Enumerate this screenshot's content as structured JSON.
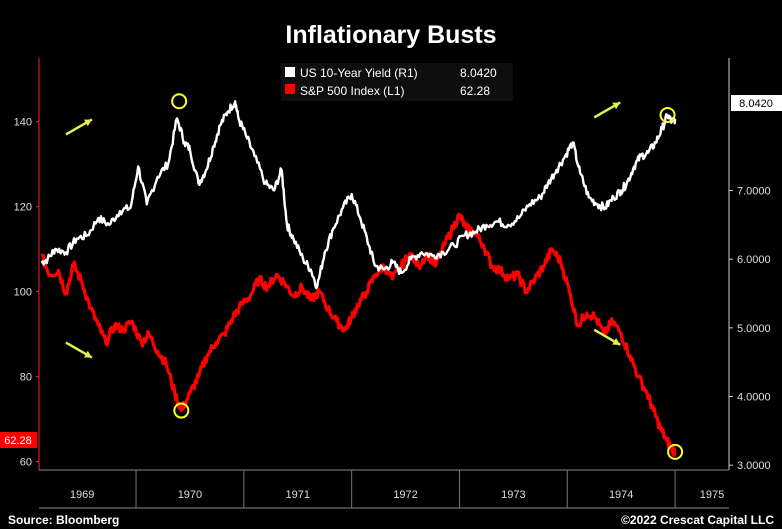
{
  "chart_data": {
    "type": "line",
    "title": "Inflationary Busts",
    "x_range": [
      1968.6,
      1975
    ],
    "x_ticks": [
      "1969",
      "1970",
      "1971",
      "1972",
      "1973",
      "1974",
      "1975"
    ],
    "left_axis": {
      "range": [
        58,
        155
      ],
      "ticks": [
        "140",
        "120",
        "100",
        "80",
        "60"
      ]
    },
    "right_axis": {
      "range": [
        2.93,
        8.93
      ],
      "ticks": [
        "7.0000",
        "6.0000",
        "5.0000",
        "4.0000",
        "3.0000"
      ]
    },
    "series": [
      {
        "name": "US 10-Year Yield (R1)",
        "axis": "right",
        "color": "#ffffff",
        "last_value": "8.0420",
        "points": [
          [
            1968.62,
            5.95
          ],
          [
            1968.68,
            6.0
          ],
          [
            1968.75,
            6.15
          ],
          [
            1968.85,
            6.1
          ],
          [
            1968.95,
            6.3
          ],
          [
            1969.05,
            6.35
          ],
          [
            1969.15,
            6.6
          ],
          [
            1969.25,
            6.5
          ],
          [
            1969.35,
            6.7
          ],
          [
            1969.45,
            6.75
          ],
          [
            1969.52,
            7.35
          ],
          [
            1969.6,
            6.8
          ],
          [
            1969.7,
            7.2
          ],
          [
            1969.8,
            7.4
          ],
          [
            1969.88,
            8.05
          ],
          [
            1969.95,
            7.7
          ],
          [
            1970.0,
            7.6
          ],
          [
            1970.08,
            7.1
          ],
          [
            1970.15,
            7.3
          ],
          [
            1970.22,
            7.65
          ],
          [
            1970.28,
            7.95
          ],
          [
            1970.35,
            8.15
          ],
          [
            1970.42,
            8.3
          ],
          [
            1970.45,
            8.05
          ],
          [
            1970.52,
            7.8
          ],
          [
            1970.6,
            7.5
          ],
          [
            1970.7,
            7.1
          ],
          [
            1970.78,
            7.0
          ],
          [
            1970.85,
            7.3
          ],
          [
            1970.9,
            6.5
          ],
          [
            1970.96,
            6.3
          ],
          [
            1971.05,
            6.0
          ],
          [
            1971.12,
            5.85
          ],
          [
            1971.18,
            5.6
          ],
          [
            1971.25,
            6.1
          ],
          [
            1971.33,
            6.45
          ],
          [
            1971.42,
            6.75
          ],
          [
            1971.5,
            6.95
          ],
          [
            1971.58,
            6.6
          ],
          [
            1971.66,
            6.2
          ],
          [
            1971.72,
            5.9
          ],
          [
            1971.8,
            5.85
          ],
          [
            1971.88,
            5.95
          ],
          [
            1971.96,
            5.8
          ],
          [
            1972.05,
            6.0
          ],
          [
            1972.15,
            6.1
          ],
          [
            1972.25,
            6.05
          ],
          [
            1972.35,
            6.1
          ],
          [
            1972.45,
            6.2
          ],
          [
            1972.55,
            6.35
          ],
          [
            1972.65,
            6.4
          ],
          [
            1972.75,
            6.5
          ],
          [
            1972.85,
            6.55
          ],
          [
            1972.95,
            6.5
          ],
          [
            1973.05,
            6.6
          ],
          [
            1973.15,
            6.8
          ],
          [
            1973.25,
            6.9
          ],
          [
            1973.32,
            7.1
          ],
          [
            1973.4,
            7.3
          ],
          [
            1973.48,
            7.5
          ],
          [
            1973.55,
            7.7
          ],
          [
            1973.62,
            7.25
          ],
          [
            1973.7,
            6.9
          ],
          [
            1973.78,
            6.8
          ],
          [
            1973.85,
            6.75
          ],
          [
            1973.93,
            6.9
          ],
          [
            1974.0,
            7.0
          ],
          [
            1974.05,
            7.1
          ],
          [
            1974.12,
            7.35
          ],
          [
            1974.18,
            7.5
          ],
          [
            1974.25,
            7.55
          ],
          [
            1974.32,
            7.7
          ],
          [
            1974.38,
            7.9
          ],
          [
            1974.43,
            8.1
          ],
          [
            1974.47,
            8.0
          ],
          [
            1974.5,
            8.04
          ]
        ]
      },
      {
        "name": "S&P 500 Index (L1)",
        "axis": "left",
        "color": "#ff0000",
        "last_value": "62.28",
        "points": [
          [
            1968.62,
            108.5
          ],
          [
            1968.7,
            104
          ],
          [
            1968.78,
            105
          ],
          [
            1968.85,
            99.5
          ],
          [
            1968.92,
            106.5
          ],
          [
            1969.0,
            102
          ],
          [
            1969.08,
            96
          ],
          [
            1969.15,
            92
          ],
          [
            1969.22,
            88
          ],
          [
            1969.3,
            92
          ],
          [
            1969.38,
            91
          ],
          [
            1969.46,
            93
          ],
          [
            1969.55,
            88
          ],
          [
            1969.62,
            90
          ],
          [
            1969.7,
            86
          ],
          [
            1969.78,
            83
          ],
          [
            1969.86,
            76
          ],
          [
            1969.92,
            72
          ],
          [
            1970.0,
            76
          ],
          [
            1970.08,
            80
          ],
          [
            1970.16,
            85
          ],
          [
            1970.24,
            88
          ],
          [
            1970.32,
            90
          ],
          [
            1970.4,
            94
          ],
          [
            1970.48,
            97
          ],
          [
            1970.56,
            99
          ],
          [
            1970.64,
            103
          ],
          [
            1970.72,
            101
          ],
          [
            1970.8,
            104
          ],
          [
            1970.88,
            102
          ],
          [
            1970.96,
            99
          ],
          [
            1971.04,
            101
          ],
          [
            1971.12,
            98
          ],
          [
            1971.2,
            100
          ],
          [
            1971.28,
            96
          ],
          [
            1971.36,
            93
          ],
          [
            1971.44,
            91
          ],
          [
            1971.5,
            94
          ],
          [
            1971.56,
            97
          ],
          [
            1971.64,
            100
          ],
          [
            1971.72,
            104
          ],
          [
            1971.8,
            106
          ],
          [
            1971.88,
            103
          ],
          [
            1971.96,
            106
          ],
          [
            1972.04,
            109
          ],
          [
            1972.12,
            106
          ],
          [
            1972.2,
            109
          ],
          [
            1972.28,
            106
          ],
          [
            1972.36,
            111
          ],
          [
            1972.44,
            115
          ],
          [
            1972.5,
            118
          ],
          [
            1972.56,
            115
          ],
          [
            1972.64,
            114
          ],
          [
            1972.72,
            111
          ],
          [
            1972.8,
            106
          ],
          [
            1972.88,
            105
          ],
          [
            1972.96,
            103
          ],
          [
            1973.04,
            104
          ],
          [
            1973.12,
            100
          ],
          [
            1973.2,
            103
          ],
          [
            1973.28,
            106
          ],
          [
            1973.36,
            110
          ],
          [
            1973.44,
            107
          ],
          [
            1973.52,
            100
          ],
          [
            1973.6,
            92
          ],
          [
            1973.68,
            95
          ],
          [
            1973.76,
            94
          ],
          [
            1973.84,
            90
          ],
          [
            1973.92,
            93
          ],
          [
            1974.0,
            90
          ],
          [
            1974.08,
            85
          ],
          [
            1974.16,
            80
          ],
          [
            1974.24,
            76
          ],
          [
            1974.3,
            72
          ],
          [
            1974.36,
            68
          ],
          [
            1974.42,
            65
          ],
          [
            1974.47,
            63
          ],
          [
            1974.5,
            62.28
          ]
        ]
      }
    ],
    "legend_position": "top-center",
    "grid": false,
    "annotations": {
      "circles": [
        {
          "axis": "right",
          "x": 1969.9,
          "y": 8.3
        },
        {
          "axis": "left",
          "x": 1969.92,
          "y": 72
        },
        {
          "axis": "right",
          "x": 1974.43,
          "y": 8.1
        },
        {
          "axis": "left",
          "x": 1974.5,
          "y": 62.28
        }
      ],
      "arrows": [
        {
          "direction": "up",
          "x": 1968.85,
          "y": 137
        },
        {
          "direction": "down",
          "x": 1968.85,
          "y": 88
        },
        {
          "direction": "up",
          "x": 1973.75,
          "y": 141
        },
        {
          "direction": "down",
          "x": 1973.75,
          "y": 91
        }
      ],
      "circle_color": "#ffff22",
      "arrow_color": "#e6f04a"
    }
  },
  "footer": {
    "source": "Source: Bloomberg",
    "copyright": "©2022 Crescat Capital LLC"
  }
}
